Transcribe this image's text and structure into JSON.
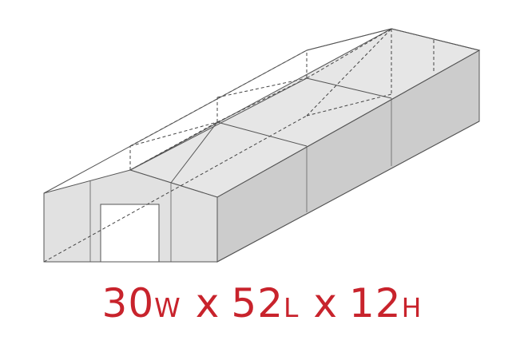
{
  "dimensions": {
    "width_value": "30",
    "width_unit": "W",
    "separator": "x",
    "length_value": "52",
    "length_unit": "L",
    "height_value": "12",
    "height_unit": "H"
  },
  "colors": {
    "accent": "#c8232c",
    "roof": "#e6e6e6",
    "front_wall": "#e1e1e1",
    "side_wall": "#cccccc",
    "edge": "#555555",
    "frame_line": "#444444"
  }
}
